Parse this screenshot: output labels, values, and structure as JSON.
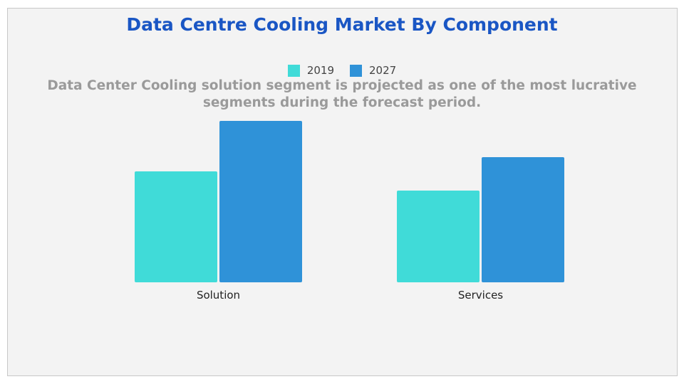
{
  "chart_data": {
    "type": "bar",
    "title": "Data Centre Cooling Market By Component",
    "subtitle": "Data Center Cooling solution segment is projected as one of the most lucrative segments during the forecast period.",
    "categories": [
      "Solution",
      "Services"
    ],
    "series": [
      {
        "name": "2019",
        "color": "#40dbd8",
        "values": [
          156,
          129
        ]
      },
      {
        "name": "2027",
        "color": "#2f92d8",
        "values": [
          227,
          176
        ]
      }
    ],
    "ylim": [
      0,
      250
    ],
    "grid": false,
    "legend": "top-center",
    "xlabel": "",
    "ylabel": ""
  }
}
